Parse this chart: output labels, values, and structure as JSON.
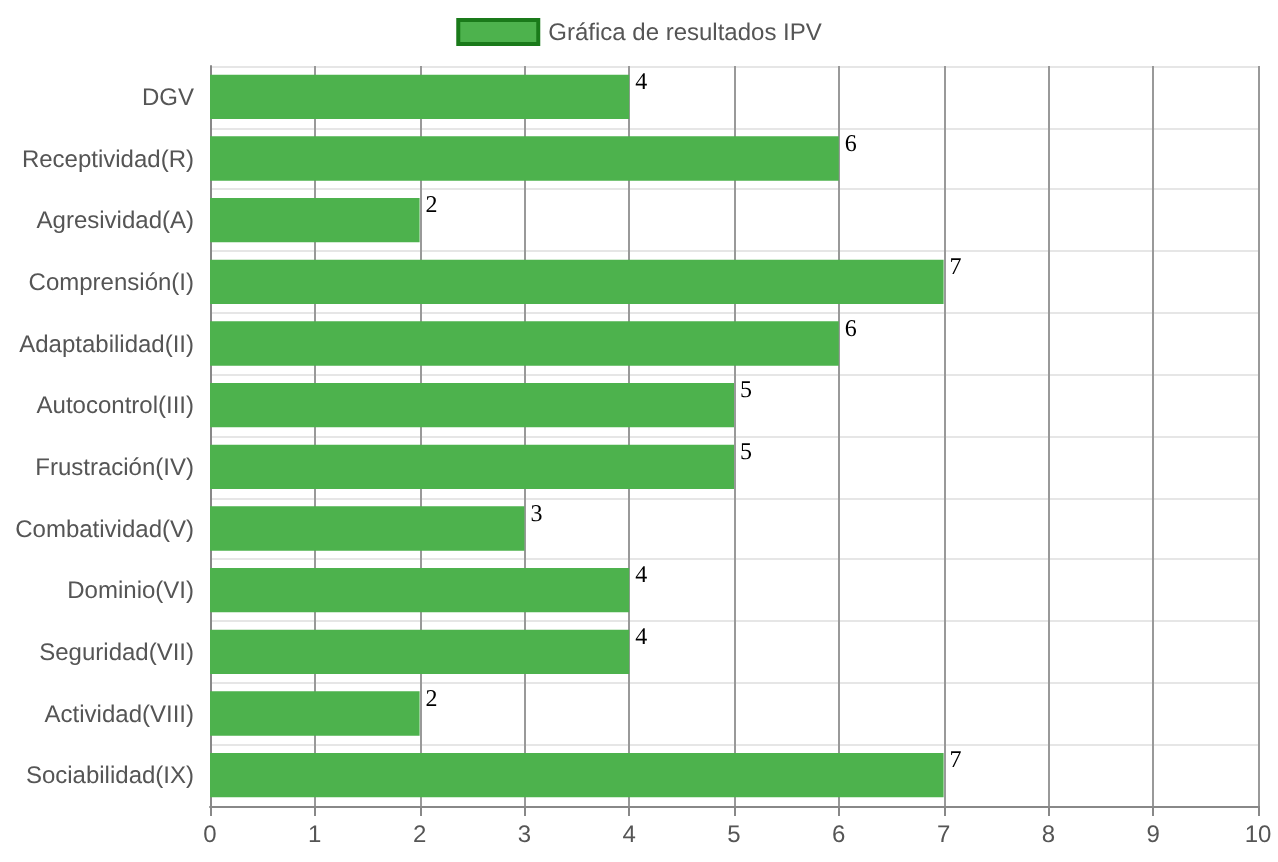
{
  "chart_data": {
    "type": "bar",
    "orientation": "horizontal",
    "categories": [
      "DGV",
      "Receptividad(R)",
      "Agresividad(A)",
      "Comprensión(I)",
      "Adaptabilidad(II)",
      "Autocontrol(III)",
      "Frustración(IV)",
      "Combatividad(V)",
      "Dominio(VI)",
      "Seguridad(VII)",
      "Actividad(VIII)",
      "Sociabilidad(IX)"
    ],
    "series": [
      {
        "name": "Gráfica de resultados IPV",
        "color": "#4db24d",
        "values": [
          4,
          6,
          2,
          7,
          6,
          5,
          5,
          3,
          4,
          4,
          2,
          7
        ]
      }
    ],
    "xlim": [
      0,
      10
    ],
    "xticks": [
      0,
      1,
      2,
      3,
      4,
      5,
      6,
      7,
      8,
      9,
      10
    ],
    "grid": true,
    "legend": "top",
    "data_labels": true
  }
}
